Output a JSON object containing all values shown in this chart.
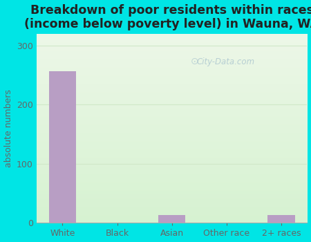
{
  "title": "Breakdown of poor residents within races\n(income below poverty level) in Wauna, WA",
  "categories": [
    "White",
    "Black",
    "Asian",
    "Other race",
    "2+ races"
  ],
  "values": [
    257,
    0,
    13,
    0,
    13
  ],
  "bar_color": "#b89ec4",
  "ylabel": "absolute numbers",
  "ylim": [
    0,
    320
  ],
  "yticks": [
    0,
    100,
    200,
    300
  ],
  "outer_bg": "#00e5e5",
  "grid_color": "#d0e8c8",
  "watermark": "City-Data.com",
  "title_fontsize": 12.5,
  "ylabel_fontsize": 9,
  "tick_fontsize": 9,
  "tick_color": "#666666",
  "title_color": "#222222"
}
